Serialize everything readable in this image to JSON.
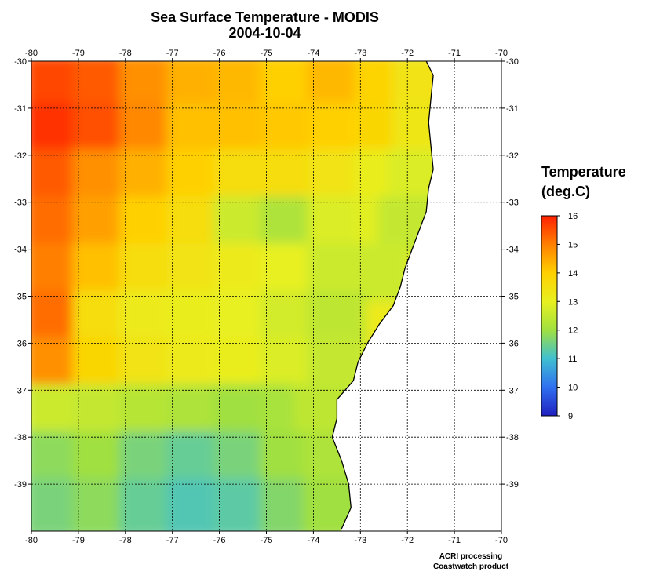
{
  "title": "Sea Surface Temperature - MODIS",
  "date": "2004-10-04",
  "legend": {
    "title_line1": "Temperature",
    "title_line2": "(deg.C)",
    "ticks": [
      "16",
      "15",
      "14",
      "13",
      "12",
      "11",
      "10",
      "9"
    ],
    "colors": [
      "#ff2000",
      "#ff8000",
      "#ffd000",
      "#e8f020",
      "#a0e040",
      "#40c0d0",
      "#3070f0",
      "#2020c0"
    ]
  },
  "credits": {
    "line1": "ACRI processing",
    "line2": "Coastwatch product"
  },
  "chart_data": {
    "type": "heatmap",
    "variable": "Sea Surface Temperature",
    "units": "deg.C",
    "color_range": [
      9,
      16
    ],
    "xlim": [
      -80,
      -70
    ],
    "ylim": [
      -40,
      -30
    ],
    "x_ticks": [
      "-80",
      "-79",
      "-78",
      "-77",
      "-76",
      "-75",
      "-74",
      "-73",
      "-72",
      "-71",
      "-70"
    ],
    "y_ticks": [
      "-30",
      "-31",
      "-32",
      "-33",
      "-34",
      "-35",
      "-36",
      "-37",
      "-38",
      "-39"
    ],
    "grid": true,
    "land_color": "#ffffff",
    "coastline": [
      [
        -71.6,
        -30
      ],
      [
        -71.45,
        -30.3
      ],
      [
        -71.5,
        -30.8
      ],
      [
        -71.55,
        -31.3
      ],
      [
        -71.5,
        -31.8
      ],
      [
        -71.45,
        -32.3
      ],
      [
        -71.55,
        -32.7
      ],
      [
        -71.6,
        -33.2
      ],
      [
        -71.75,
        -33.6
      ],
      [
        -71.9,
        -34
      ],
      [
        -72.05,
        -34.4
      ],
      [
        -72.15,
        -34.8
      ],
      [
        -72.3,
        -35.2
      ],
      [
        -72.6,
        -35.6
      ],
      [
        -72.85,
        -36
      ],
      [
        -73.05,
        -36.4
      ],
      [
        -73.15,
        -36.8
      ],
      [
        -73.5,
        -37.2
      ],
      [
        -73.5,
        -37.6
      ],
      [
        -73.6,
        -38
      ],
      [
        -73.4,
        -38.5
      ],
      [
        -73.25,
        -39
      ],
      [
        -73.2,
        -39.5
      ],
      [
        -73.4,
        -39.95
      ]
    ],
    "temperature_samples": [
      {
        "lon": -79.5,
        "lat": -30.5,
        "t": 15.6
      },
      {
        "lon": -78.5,
        "lat": -30.5,
        "t": 15.4
      },
      {
        "lon": -77.5,
        "lat": -30.5,
        "t": 14.8
      },
      {
        "lon": -76.5,
        "lat": -30.5,
        "t": 14.4
      },
      {
        "lon": -75.5,
        "lat": -30.5,
        "t": 14.3
      },
      {
        "lon": -74.5,
        "lat": -30.5,
        "t": 14.0
      },
      {
        "lon": -73.5,
        "lat": -30.5,
        "t": 14.3
      },
      {
        "lon": -72.5,
        "lat": -30.5,
        "t": 13.9
      },
      {
        "lon": -71.7,
        "lat": -30.5,
        "t": 13.4
      },
      {
        "lon": -79.5,
        "lat": -31.5,
        "t": 15.8
      },
      {
        "lon": -78.5,
        "lat": -31.5,
        "t": 15.5
      },
      {
        "lon": -77.5,
        "lat": -31.5,
        "t": 14.9
      },
      {
        "lon": -76.5,
        "lat": -31.5,
        "t": 14.2
      },
      {
        "lon": -75.5,
        "lat": -31.5,
        "t": 14.2
      },
      {
        "lon": -74.5,
        "lat": -31.5,
        "t": 14.1
      },
      {
        "lon": -73.5,
        "lat": -31.5,
        "t": 14.0
      },
      {
        "lon": -72.5,
        "lat": -31.5,
        "t": 13.8
      },
      {
        "lon": -71.7,
        "lat": -31.5,
        "t": 13.3
      },
      {
        "lon": -79.5,
        "lat": -32.5,
        "t": 15.4
      },
      {
        "lon": -78.5,
        "lat": -32.5,
        "t": 14.8
      },
      {
        "lon": -77.5,
        "lat": -32.5,
        "t": 14.4
      },
      {
        "lon": -76.5,
        "lat": -32.5,
        "t": 14.0
      },
      {
        "lon": -75.5,
        "lat": -32.5,
        "t": 13.6
      },
      {
        "lon": -74.5,
        "lat": -32.5,
        "t": 13.6
      },
      {
        "lon": -73.5,
        "lat": -32.5,
        "t": 13.4
      },
      {
        "lon": -72.5,
        "lat": -32.5,
        "t": 13.1
      },
      {
        "lon": -71.8,
        "lat": -32.5,
        "t": 12.8
      },
      {
        "lon": -79.5,
        "lat": -33.5,
        "t": 15.2
      },
      {
        "lon": -78.5,
        "lat": -33.5,
        "t": 14.6
      },
      {
        "lon": -77.5,
        "lat": -33.5,
        "t": 14.0
      },
      {
        "lon": -76.5,
        "lat": -33.5,
        "t": 13.6
      },
      {
        "lon": -75.5,
        "lat": -33.5,
        "t": 12.6
      },
      {
        "lon": -74.5,
        "lat": -33.5,
        "t": 12.2
      },
      {
        "lon": -73.5,
        "lat": -33.5,
        "t": 12.8
      },
      {
        "lon": -72.5,
        "lat": -33.5,
        "t": 12.9
      },
      {
        "lon": -72.0,
        "lat": -33.5,
        "t": 12.5
      },
      {
        "lon": -79.5,
        "lat": -34.5,
        "t": 15.0
      },
      {
        "lon": -78.5,
        "lat": -34.5,
        "t": 14.2
      },
      {
        "lon": -77.5,
        "lat": -34.5,
        "t": 13.6
      },
      {
        "lon": -76.5,
        "lat": -34.5,
        "t": 13.4
      },
      {
        "lon": -75.5,
        "lat": -34.5,
        "t": 13.2
      },
      {
        "lon": -74.5,
        "lat": -34.5,
        "t": 13.0
      },
      {
        "lon": -73.5,
        "lat": -34.5,
        "t": 12.6
      },
      {
        "lon": -72.6,
        "lat": -34.5,
        "t": 12.6
      },
      {
        "lon": -79.5,
        "lat": -35.5,
        "t": 15.2
      },
      {
        "lon": -78.5,
        "lat": -35.5,
        "t": 13.6
      },
      {
        "lon": -77.5,
        "lat": -35.5,
        "t": 13.2
      },
      {
        "lon": -76.5,
        "lat": -35.5,
        "t": 13.1
      },
      {
        "lon": -75.5,
        "lat": -35.5,
        "t": 13.0
      },
      {
        "lon": -74.5,
        "lat": -35.5,
        "t": 12.7
      },
      {
        "lon": -73.5,
        "lat": -35.5,
        "t": 12.4
      },
      {
        "lon": -79.5,
        "lat": -36.5,
        "t": 14.8
      },
      {
        "lon": -78.5,
        "lat": -36.5,
        "t": 13.8
      },
      {
        "lon": -77.5,
        "lat": -36.5,
        "t": 13.4
      },
      {
        "lon": -76.5,
        "lat": -36.5,
        "t": 13.2
      },
      {
        "lon": -75.5,
        "lat": -36.5,
        "t": 13.1
      },
      {
        "lon": -74.5,
        "lat": -36.5,
        "t": 12.8
      },
      {
        "lon": -73.5,
        "lat": -36.5,
        "t": 12.5
      },
      {
        "lon": -79.5,
        "lat": -37.5,
        "t": 12.6
      },
      {
        "lon": -78.5,
        "lat": -37.5,
        "t": 12.5
      },
      {
        "lon": -77.5,
        "lat": -37.5,
        "t": 12.3
      },
      {
        "lon": -76.5,
        "lat": -37.5,
        "t": 12.2
      },
      {
        "lon": -75.5,
        "lat": -37.5,
        "t": 12.0
      },
      {
        "lon": -74.5,
        "lat": -37.5,
        "t": 12.1
      },
      {
        "lon": -73.8,
        "lat": -37.5,
        "t": 12.4
      },
      {
        "lon": -79.5,
        "lat": -38.5,
        "t": 11.8
      },
      {
        "lon": -78.5,
        "lat": -38.5,
        "t": 12.0
      },
      {
        "lon": -77.5,
        "lat": -38.5,
        "t": 11.6
      },
      {
        "lon": -76.5,
        "lat": -38.5,
        "t": 11.4
      },
      {
        "lon": -75.5,
        "lat": -38.5,
        "t": 11.6
      },
      {
        "lon": -74.5,
        "lat": -38.5,
        "t": 12.0
      },
      {
        "lon": -73.6,
        "lat": -38.5,
        "t": 12.2
      },
      {
        "lon": -79.5,
        "lat": -39.5,
        "t": 11.6
      },
      {
        "lon": -78.5,
        "lat": -39.5,
        "t": 11.8
      },
      {
        "lon": -77.5,
        "lat": -39.5,
        "t": 11.4
      },
      {
        "lon": -76.5,
        "lat": -39.5,
        "t": 11.2
      },
      {
        "lon": -75.5,
        "lat": -39.5,
        "t": 11.3
      },
      {
        "lon": -74.5,
        "lat": -39.5,
        "t": 11.7
      },
      {
        "lon": -73.6,
        "lat": -39.5,
        "t": 12.0
      }
    ]
  }
}
